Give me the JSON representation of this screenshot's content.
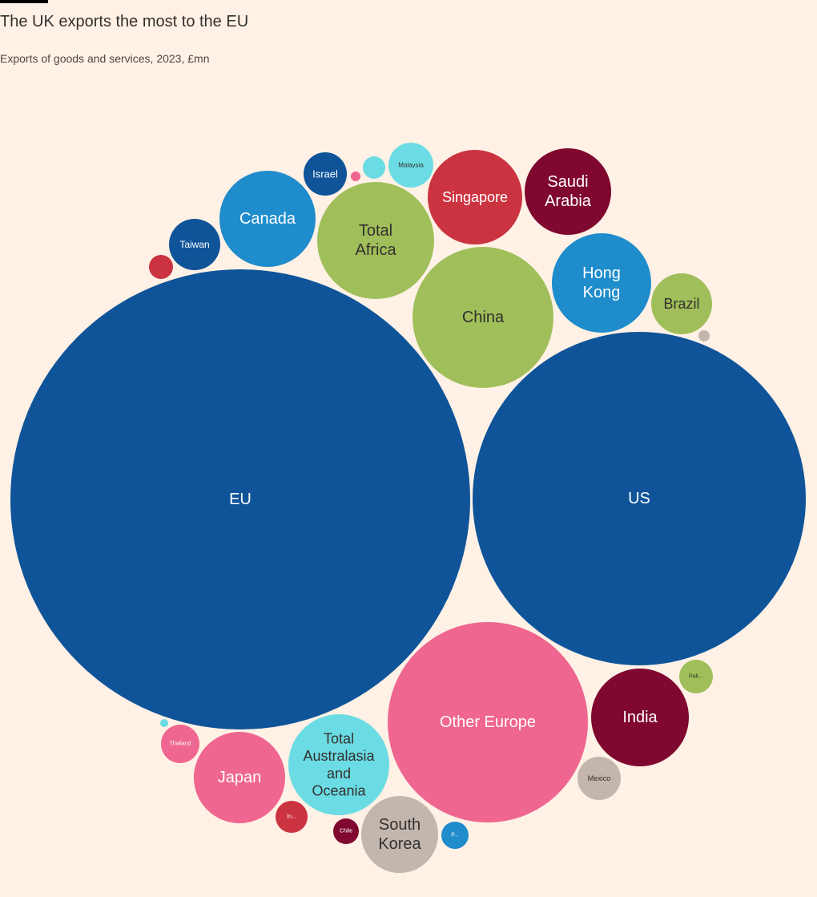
{
  "header": {
    "title": "The UK exports the most to the EU",
    "subtitle": "Exports of goods and services, 2023, £mn"
  },
  "colors": {
    "background": "#fff1e5",
    "dark_blue": "#0f5499",
    "mid_blue": "#1f8ccc",
    "light_cyan": "#6bdce3",
    "green": "#a0bf5a",
    "red": "#cc3341",
    "claret": "#7f0730",
    "pink": "#ef6690",
    "grey": "#c2b6ad"
  },
  "chart_data": {
    "type": "bubble",
    "title": "The UK exports the most to the EU",
    "subtitle": "Exports of goods and services, 2023, £mn",
    "bubbles": [
      {
        "label": "EU",
        "relative_area": 1.0,
        "color": "#0f5499",
        "text_color": "#ffffff"
      },
      {
        "label": "US",
        "relative_area": 0.523,
        "color": "#0f5499",
        "text_color": "#ffffff"
      },
      {
        "label": "Other Europe",
        "relative_area": 0.191,
        "color": "#ef6690",
        "text_color": "#ffffff"
      },
      {
        "label": "China",
        "relative_area": 0.093,
        "color": "#a0bf5a",
        "text_color": "#33302e"
      },
      {
        "label": "Total Africa",
        "relative_area": 0.065,
        "color": "#a0bf5a",
        "text_color": "#33302e"
      },
      {
        "label": "India",
        "relative_area": 0.045,
        "color": "#7f0730",
        "text_color": "#ffffff"
      },
      {
        "label": "Canada",
        "relative_area": 0.044,
        "color": "#1f8ccc",
        "text_color": "#ffffff"
      },
      {
        "label": "Total Australasia and Oceania",
        "relative_area": 0.048,
        "color": "#6bdce3",
        "text_color": "#33302e"
      },
      {
        "label": "Hong Kong",
        "relative_area": 0.047,
        "color": "#1f8ccc",
        "text_color": "#ffffff"
      },
      {
        "label": "Singapore",
        "relative_area": 0.042,
        "color": "#cc3341",
        "text_color": "#ffffff"
      },
      {
        "label": "Japan",
        "relative_area": 0.039,
        "color": "#ef6690",
        "text_color": "#ffffff"
      },
      {
        "label": "Saudi Arabia",
        "relative_area": 0.035,
        "color": "#7f0730",
        "text_color": "#ffffff"
      },
      {
        "label": "South Korea",
        "relative_area": 0.028,
        "color": "#c2b6ad",
        "text_color": "#33302e"
      },
      {
        "label": "Brazil",
        "relative_area": 0.018,
        "color": "#a0bf5a",
        "text_color": "#33302e"
      },
      {
        "label": "Taiwan",
        "relative_area": 0.0125,
        "color": "#0f5499",
        "text_color": "#ffffff"
      },
      {
        "label": "Israel",
        "relative_area": 0.009,
        "color": "#0f5499",
        "text_color": "#ffffff"
      },
      {
        "label": "Malaysia",
        "relative_area": 0.0093,
        "color": "#6bdce3",
        "text_color": "#33302e"
      },
      {
        "label": "Mexico",
        "relative_area": 0.0088,
        "color": "#c2b6ad",
        "text_color": "#33302e"
      },
      {
        "label": "Pak...",
        "relative_area": 0.0055,
        "color": "#a0bf5a",
        "text_color": "#33302e"
      },
      {
        "label": "Thailand",
        "relative_area": 0.0073,
        "color": "#ef6690",
        "text_color": "#ffffff"
      },
      {
        "label": "In...",
        "relative_area": 0.0049,
        "color": "#cc3341",
        "text_color": "#ffffff"
      },
      {
        "label": "P...",
        "relative_area": 0.0034,
        "color": "#1f8ccc",
        "text_color": "#ffffff"
      },
      {
        "label": "Chile",
        "relative_area": 0.0031,
        "color": "#7f0730",
        "text_color": "#ffffff"
      },
      {
        "label": "",
        "relative_area": 0.0028,
        "color": "#cc3341",
        "text_color": "#ffffff"
      },
      {
        "label": "",
        "relative_area": 0.0024,
        "color": "#6bdce3",
        "text_color": "#33302e"
      },
      {
        "label": "",
        "relative_area": 0.0005,
        "color": "#ef6690",
        "text_color": "#ffffff"
      },
      {
        "label": "",
        "relative_area": 0.0006,
        "color": "#c2b6ad",
        "text_color": "#33302e"
      },
      {
        "label": "",
        "relative_area": 0.0003,
        "color": "#6bdce3",
        "text_color": "#33302e"
      }
    ]
  }
}
